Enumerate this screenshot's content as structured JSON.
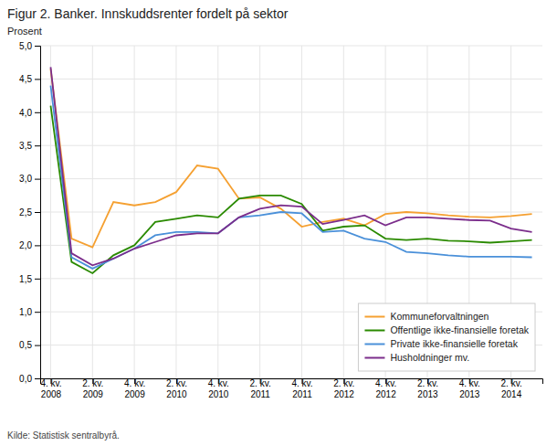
{
  "chart_data": {
    "type": "line",
    "title": "Figur 2. Banker. Innskuddsrenter fordelt på sektor",
    "y_label": "Prosent",
    "annotations": [
      "Kilde: Statistisk sentralbyrå."
    ],
    "categories": [
      "4. kv.\n2008",
      null,
      "2. kv.\n2009",
      null,
      "4. kv.\n2009",
      null,
      "2. kv.\n2010",
      null,
      "4. kv.\n2010",
      null,
      "2. kv.\n2011",
      null,
      "4. kv.\n2011",
      null,
      "2. kv.\n2012",
      null,
      "4. kv.\n2012",
      null,
      "2. kv.\n2013",
      null,
      "4. kv.\n2013",
      null,
      "2. kv.\n2014",
      null
    ],
    "ylim": [
      0.0,
      5.0
    ],
    "yticks": [
      {
        "value": 0.0,
        "label": "0,0"
      },
      {
        "value": 0.5,
        "label": "0,5"
      },
      {
        "value": 1.0,
        "label": "1,0"
      },
      {
        "value": 1.5,
        "label": "1,5"
      },
      {
        "value": 2.0,
        "label": "2,0"
      },
      {
        "value": 2.5,
        "label": "2,5"
      },
      {
        "value": 3.0,
        "label": "3,0"
      },
      {
        "value": 3.5,
        "label": "3,5"
      },
      {
        "value": 4.0,
        "label": "4,0"
      },
      {
        "value": 4.5,
        "label": "4,5"
      },
      {
        "value": 5.0,
        "label": "5,0"
      }
    ],
    "grid": true,
    "legend": "lower right",
    "series": [
      {
        "name": "Kommuneforvaltningen",
        "color": "#F5A031",
        "values": [
          4.65,
          2.1,
          1.97,
          2.65,
          2.6,
          2.65,
          2.8,
          3.2,
          3.15,
          2.7,
          2.72,
          2.55,
          2.28,
          2.35,
          2.4,
          2.3,
          2.47,
          2.5,
          2.48,
          2.45,
          2.43,
          2.42,
          2.44,
          2.47
        ]
      },
      {
        "name": "Offentlige ikke-finansielle foretak",
        "color": "#2A8A00",
        "values": [
          4.1,
          1.75,
          1.58,
          1.85,
          2.0,
          2.35,
          2.4,
          2.45,
          2.42,
          2.7,
          2.75,
          2.75,
          2.62,
          2.22,
          2.28,
          2.3,
          2.1,
          2.08,
          2.1,
          2.07,
          2.06,
          2.04,
          2.06,
          2.08
        ]
      },
      {
        "name": "Private ikke-finansielle foretak",
        "color": "#4A90D9",
        "values": [
          4.4,
          1.82,
          1.65,
          1.8,
          1.95,
          2.15,
          2.2,
          2.2,
          2.18,
          2.42,
          2.45,
          2.5,
          2.48,
          2.2,
          2.22,
          2.1,
          2.05,
          1.9,
          1.88,
          1.85,
          1.83,
          1.83,
          1.83,
          1.82
        ]
      },
      {
        "name": "Husholdninger mv.",
        "color": "#7B2D8B",
        "values": [
          4.68,
          1.88,
          1.7,
          1.8,
          1.95,
          2.05,
          2.15,
          2.18,
          2.18,
          2.42,
          2.55,
          2.6,
          2.58,
          2.32,
          2.38,
          2.45,
          2.3,
          2.42,
          2.42,
          2.4,
          2.38,
          2.37,
          2.25,
          2.2
        ]
      }
    ]
  }
}
